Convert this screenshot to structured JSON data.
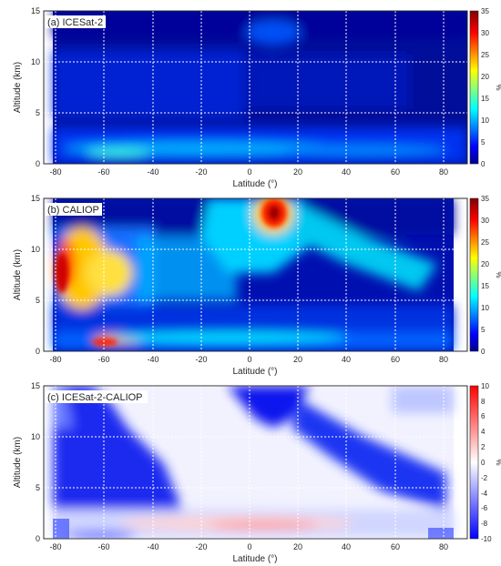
{
  "chart_data": [
    {
      "type": "heatmap",
      "panel_label": "(a) ICESat-2",
      "xlabel": "Latitude (°)",
      "ylabel": "Altitude (km)",
      "xlim": [
        -85,
        90
      ],
      "ylim": [
        0,
        15
      ],
      "xticks": [
        -80,
        -60,
        -40,
        -20,
        0,
        20,
        40,
        60,
        80
      ],
      "yticks": [
        0,
        5,
        10,
        15
      ],
      "colorbar": {
        "label": "%",
        "min": 0,
        "max": 35,
        "ticks": [
          0,
          5,
          10,
          15,
          20,
          25,
          30,
          35
        ],
        "colormap": "jet"
      },
      "grid": true,
      "data_extent_x": [
        -82,
        88
      ],
      "features": [
        {
          "description": "near-surface layer",
          "lat_range": [
            -65,
            85
          ],
          "alt_km": 1.2,
          "value_pct": 12
        },
        {
          "description": "tropical upper layer",
          "lat": 10,
          "alt_km": 13.5,
          "value_pct": 8
        },
        {
          "description": "southern high-latitude mid layer",
          "lat_range": [
            -82,
            -40
          ],
          "alt_km": [
            5,
            10
          ],
          "value_pct": 7
        }
      ]
    },
    {
      "type": "heatmap",
      "panel_label": "(b) CALIOP",
      "xlabel": "Latitude (°)",
      "ylabel": "Altitude (km)",
      "xlim": [
        -85,
        90
      ],
      "ylim": [
        0,
        15
      ],
      "xticks": [
        -80,
        -60,
        -40,
        -20,
        0,
        20,
        40,
        60,
        80
      ],
      "yticks": [
        0,
        5,
        10,
        15
      ],
      "colorbar": {
        "label": "%",
        "min": 0,
        "max": 35,
        "ticks": [
          0,
          5,
          10,
          15,
          20,
          25,
          30,
          35
        ],
        "colormap": "jet"
      },
      "grid": true,
      "data_extent_x": [
        -82,
        82
      ],
      "features": [
        {
          "description": "tropical cirrus maximum",
          "lat": 10,
          "alt_km": 13,
          "value_pct": 30
        },
        {
          "description": "southern polar stratospheric maximum",
          "lat_range": [
            -80,
            -60
          ],
          "alt_km": [
            4,
            10
          ],
          "value_pct": 25
        },
        {
          "description": "near-surface southern maximum",
          "lat": -62,
          "alt_km": 0.6,
          "value_pct": 24
        },
        {
          "description": "mid-latitude storm-track arches",
          "lat": [
            -40,
            60
          ],
          "alt_km": [
            6,
            11
          ],
          "value_pct": 13
        }
      ]
    },
    {
      "type": "heatmap",
      "panel_label": "(c) ICESat-2-CALIOP",
      "xlabel": "Latitude (°)",
      "ylabel": "Altitude (km)",
      "xlim": [
        -85,
        90
      ],
      "ylim": [
        0,
        15
      ],
      "xticks": [
        -80,
        -60,
        -40,
        -20,
        0,
        20,
        40,
        60,
        80
      ],
      "yticks": [
        0,
        5,
        10,
        15
      ],
      "colorbar": {
        "label": "%",
        "min": -10,
        "max": 10,
        "ticks": [
          -10,
          -8,
          -6,
          -4,
          -2,
          0,
          2,
          4,
          6,
          8,
          10
        ],
        "colormap": "blue-white-red"
      },
      "grid": true,
      "data_extent_x": [
        -82,
        82
      ],
      "features": [
        {
          "description": "tropical upper negative difference",
          "lat": 5,
          "alt_km": 13,
          "value_pct": -10
        },
        {
          "description": "southern high-latitude negative band",
          "lat_range": [
            -80,
            -40
          ],
          "alt_km": [
            5,
            12
          ],
          "value_pct": -9
        },
        {
          "description": "low-level positive difference",
          "lat_range": [
            -40,
            40
          ],
          "alt_km": 1,
          "value_pct": 3
        }
      ]
    }
  ]
}
